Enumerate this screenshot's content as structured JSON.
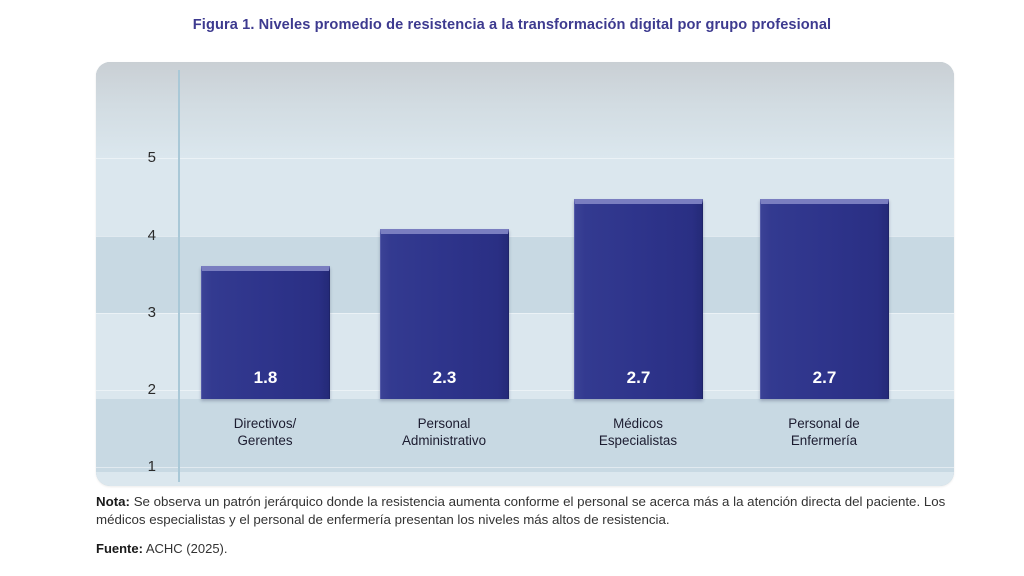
{
  "title": {
    "prefix": "Figura 1.",
    "text": "Niveles promedio de resistencia a la transformación digital por grupo profesional"
  },
  "chart_data": {
    "type": "bar",
    "title": "Figura 1. Niveles promedio de resistencia a la transformación digital por grupo profesional",
    "categories": [
      "Directivos/ Gerentes",
      "Personal Administrativo",
      "Médicos Especialistas",
      "Personal de Enfermería"
    ],
    "values": [
      1.8,
      2.3,
      2.7,
      2.7
    ],
    "bars": [
      {
        "value_label": "1.8",
        "category_line1": "Directivos/",
        "category_line2": "Gerentes"
      },
      {
        "value_label": "2.3",
        "category_line1": "Personal",
        "category_line2": "Administrativo"
      },
      {
        "value_label": "2.7",
        "category_line1": "Médicos",
        "category_line2": "Especialistas"
      },
      {
        "value_label": "2.7",
        "category_line1": "Personal de",
        "category_line2": "Enfermería"
      }
    ],
    "y_ticks": [
      "5",
      "4",
      "3",
      "2",
      "1"
    ],
    "ylim": [
      1,
      5
    ],
    "xlabel": "",
    "ylabel": "",
    "legend": "none",
    "grid": "horizontal bands",
    "bar_color": "#2f3590",
    "value_label_color": "#ffffff",
    "plot_bg_light": "#dbe7ee",
    "plot_bg_dark": "#c8d9e3",
    "title_color": "#3d3a8f"
  },
  "note": {
    "label": "Nota:",
    "text": "Se observa un patrón jerárquico donde la resistencia aumenta conforme el personal se acerca más a la atención directa del paciente. Los médicos especialistas y el personal de enfermería presentan los niveles más altos de resistencia."
  },
  "source": {
    "label": "Fuente:",
    "text": "ACHC (2025)."
  }
}
